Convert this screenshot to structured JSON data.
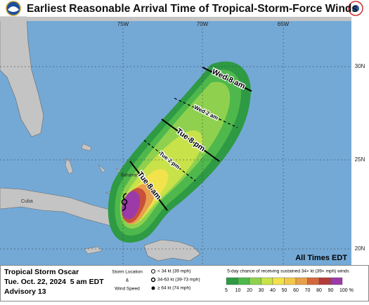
{
  "header": {
    "title": "Earliest Reasonable Arrival Time of Tropical-Storm-Force Winds"
  },
  "map": {
    "longitude_labels": [
      "75W",
      "70W",
      "65W"
    ],
    "latitude_labels": [
      "30N",
      "25N",
      "20N"
    ],
    "places": [
      "Cuba",
      "Bahamas"
    ],
    "arrival_times": [
      "Wed 8 am",
      "Wed 2 am",
      "Tue 8 pm",
      "Tue 2 pm",
      "Tue 8 am"
    ],
    "time_note": "All Times EDT"
  },
  "storm": {
    "name": "Tropical Storm Oscar",
    "issued": "Tue. Oct. 22, 2024  5 am EDT",
    "advisory": "Advisory 13"
  },
  "symbol_legend": {
    "title": "Storm Location",
    "amp": "&",
    "subtitle": "Wind Speed",
    "items": [
      "< 34 kt (39 mph)",
      "34-63 kt (39-73 mph)",
      "≥ 64 kt (74 mph)"
    ]
  },
  "probability_legend": {
    "title": "5-day chance of receiving sustained 34+ kt (39+ mph) winds",
    "labels": [
      "5",
      "10",
      "20",
      "30",
      "40",
      "50",
      "60",
      "70",
      "80",
      "90",
      "100 %"
    ]
  }
}
